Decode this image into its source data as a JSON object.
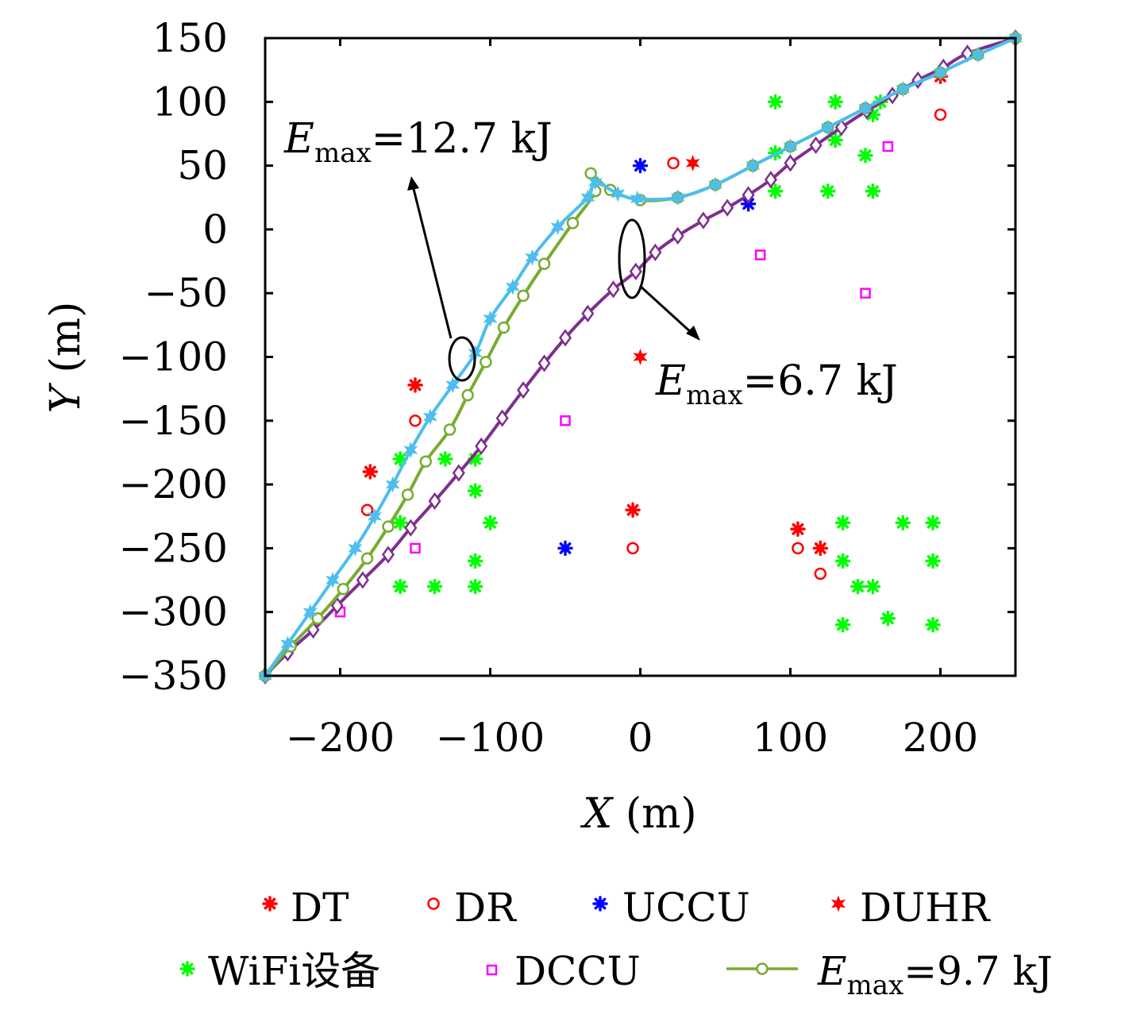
{
  "chart_data": {
    "type": "scatter",
    "xlabel": "X (m)",
    "xlabel_var": "X",
    "xlabel_unit": "(m)",
    "ylabel": "Y (m)",
    "ylabel_var": "Y",
    "ylabel_unit": "(m)",
    "xlim": [
      -250,
      250
    ],
    "ylim": [
      -350,
      150
    ],
    "xticks": [
      -200,
      -100,
      0,
      100,
      200
    ],
    "yticks": [
      150,
      100,
      50,
      0,
      -50,
      -100,
      -150,
      -200,
      -250,
      -300,
      -350
    ],
    "xtick_labels": [
      "−200",
      "−100",
      "0",
      "100",
      "200"
    ],
    "ytick_labels": [
      "150",
      "100",
      "50",
      "0",
      "−50",
      "−100",
      "−150",
      "−200",
      "−250",
      "−300",
      "−350"
    ],
    "grid": false,
    "legend_position": "bottom",
    "scatter_series": [
      {
        "name": "DT",
        "marker": "asterisk",
        "color": "#ff0000",
        "points": [
          [
            -180,
            -190
          ],
          [
            -150,
            -122
          ],
          [
            -5,
            -220
          ],
          [
            105,
            -235
          ],
          [
            120,
            -250
          ],
          [
            200,
            120
          ]
        ]
      },
      {
        "name": "DR",
        "marker": "circle",
        "color": "#ff0000",
        "points": [
          [
            -182,
            -220
          ],
          [
            -150,
            -150
          ],
          [
            -5,
            -250
          ],
          [
            22,
            52
          ],
          [
            105,
            -250
          ],
          [
            120,
            -270
          ],
          [
            200,
            90
          ]
        ]
      },
      {
        "name": "UCCU",
        "marker": "asterisk",
        "color": "#0000ff",
        "points": [
          [
            0,
            50
          ],
          [
            -50,
            -250
          ],
          [
            72,
            20
          ]
        ]
      },
      {
        "name": "DUHR",
        "marker": "star6",
        "color": "#ff0000",
        "points": [
          [
            0,
            -100
          ],
          [
            35,
            52
          ]
        ]
      },
      {
        "name": "WiFi设备",
        "marker": "asterisk",
        "color": "#00ff00",
        "points": [
          [
            -160,
            -180
          ],
          [
            -160,
            -230
          ],
          [
            -160,
            -280
          ],
          [
            -130,
            -180
          ],
          [
            -110,
            -180
          ],
          [
            -110,
            -205
          ],
          [
            -100,
            -230
          ],
          [
            -110,
            -260
          ],
          [
            -110,
            -280
          ],
          [
            -137,
            -280
          ],
          [
            90,
            100
          ],
          [
            90,
            60
          ],
          [
            90,
            30
          ],
          [
            130,
            100
          ],
          [
            130,
            70
          ],
          [
            125,
            30
          ],
          [
            150,
            58
          ],
          [
            155,
            30
          ],
          [
            155,
            90
          ],
          [
            160,
            100
          ],
          [
            135,
            -230
          ],
          [
            135,
            -260
          ],
          [
            135,
            -310
          ],
          [
            145,
            -280
          ],
          [
            155,
            -280
          ],
          [
            165,
            -305
          ],
          [
            175,
            -230
          ],
          [
            195,
            -230
          ],
          [
            195,
            -260
          ],
          [
            195,
            -310
          ]
        ]
      },
      {
        "name": "DCCU",
        "marker": "square",
        "color": "#ff00ff",
        "points": [
          [
            -200,
            -300
          ],
          [
            -150,
            -250
          ],
          [
            -50,
            -150
          ],
          [
            80,
            -20
          ],
          [
            150,
            -50
          ],
          [
            165,
            65
          ]
        ]
      }
    ],
    "line_series": [
      {
        "name": "E_max=12.7 kJ",
        "color": "#4dbeee",
        "marker": "star6",
        "points": [
          [
            -250,
            -350
          ],
          [
            -235,
            -325
          ],
          [
            -220,
            -300
          ],
          [
            -205,
            -275
          ],
          [
            -190,
            -250
          ],
          [
            -177,
            -225
          ],
          [
            -165,
            -200
          ],
          [
            -153,
            -173
          ],
          [
            -140,
            -147
          ],
          [
            -125,
            -122
          ],
          [
            -110,
            -97
          ],
          [
            -100,
            -70
          ],
          [
            -85,
            -45
          ],
          [
            -72,
            -22
          ],
          [
            -55,
            2
          ],
          [
            -35,
            25
          ],
          [
            -30,
            37
          ],
          [
            -15,
            28
          ],
          [
            -2,
            24
          ],
          [
            25,
            25
          ],
          [
            50,
            35
          ],
          [
            75,
            50
          ],
          [
            100,
            65
          ],
          [
            125,
            80
          ],
          [
            150,
            95
          ],
          [
            175,
            110
          ],
          [
            200,
            123
          ],
          [
            225,
            137
          ],
          [
            250,
            150
          ]
        ]
      },
      {
        "name": "E_max=9.7 kJ",
        "color": "#77ac30",
        "marker": "circle",
        "points": [
          [
            -250,
            -350
          ],
          [
            -233,
            -327
          ],
          [
            -215,
            -305
          ],
          [
            -198,
            -282
          ],
          [
            -182,
            -258
          ],
          [
            -168,
            -233
          ],
          [
            -155,
            -208
          ],
          [
            -143,
            -182
          ],
          [
            -127,
            -157
          ],
          [
            -115,
            -130
          ],
          [
            -103,
            -104
          ],
          [
            -91,
            -77
          ],
          [
            -78,
            -52
          ],
          [
            -64,
            -27
          ],
          [
            -45,
            5
          ],
          [
            -30,
            30
          ],
          [
            -33,
            44
          ],
          [
            -20,
            31
          ],
          [
            0,
            23
          ],
          [
            25,
            25
          ],
          [
            50,
            35
          ],
          [
            75,
            50
          ],
          [
            100,
            65
          ],
          [
            125,
            80
          ],
          [
            150,
            95
          ],
          [
            175,
            110
          ],
          [
            200,
            123
          ],
          [
            225,
            137
          ],
          [
            250,
            150
          ]
        ]
      },
      {
        "name": "E_max=6.7 kJ",
        "color": "#7e2f8e",
        "marker": "diamond",
        "points": [
          [
            -250,
            -350
          ],
          [
            -235,
            -332
          ],
          [
            -218,
            -314
          ],
          [
            -202,
            -295
          ],
          [
            -185,
            -275
          ],
          [
            -168,
            -255
          ],
          [
            -153,
            -234
          ],
          [
            -137,
            -213
          ],
          [
            -121,
            -191
          ],
          [
            -106,
            -170
          ],
          [
            -92,
            -148
          ],
          [
            -78,
            -126
          ],
          [
            -64,
            -105
          ],
          [
            -50,
            -85
          ],
          [
            -35,
            -66
          ],
          [
            -18,
            -47
          ],
          [
            -3,
            -33
          ],
          [
            10,
            -18
          ],
          [
            25,
            -5
          ],
          [
            42,
            7
          ],
          [
            58,
            17
          ],
          [
            72,
            27
          ],
          [
            87,
            39
          ],
          [
            100,
            52
          ],
          [
            117,
            66
          ],
          [
            134,
            80
          ],
          [
            151,
            93
          ],
          [
            168,
            105
          ],
          [
            185,
            117
          ],
          [
            202,
            127
          ],
          [
            218,
            138
          ],
          [
            250,
            150
          ]
        ]
      }
    ],
    "annotations": [
      {
        "prefix": "E",
        "sub": "max",
        "text": "=12.7 kJ"
      },
      {
        "prefix": "E",
        "sub": "max",
        "text": "=6.7 kJ"
      }
    ],
    "legend": [
      "DT",
      "DR",
      "UCCU",
      "DUHR",
      "WiFi设备",
      "DCCU",
      "E_max=9.7 kJ"
    ],
    "legend_text": {
      "dt": "DT",
      "dr": "DR",
      "uccu": "UCCU",
      "duhr": "DUHR",
      "wifi": "WiFi设备",
      "dccu": "DCCU",
      "line_prefix": "E",
      "line_sub": "max",
      "line_text": "=9.7 kJ"
    }
  }
}
